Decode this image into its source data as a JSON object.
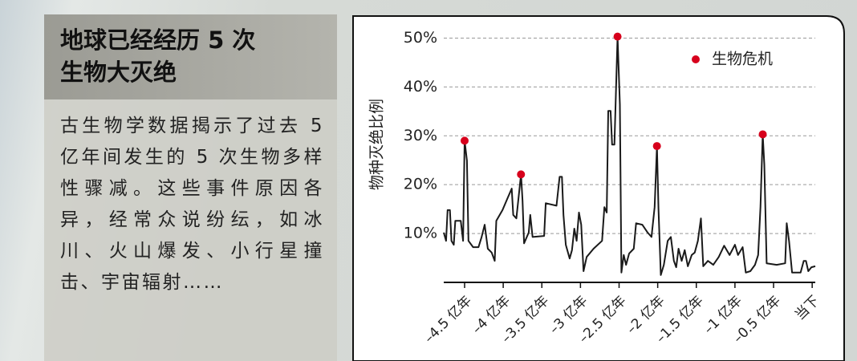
{
  "panel": {
    "title": [
      "地球已经经历 5 次",
      "生物大灭绝"
    ],
    "body": "古生物学数据揭示了过去 5 亿年间发生的 5 次生物多样性骤减。这些事件原因各异，经常众说纷纭，如冰川、火山爆发、小行星撞击、宇宙辐射……"
  },
  "chart_data": {
    "type": "line",
    "y_label": "物种灭绝比例",
    "color": "#1a1a1a",
    "x": [
      -4.77,
      -4.74,
      -4.72,
      -4.69,
      -4.67,
      -4.64,
      -4.62,
      -4.55,
      -4.52,
      -4.5,
      -4.47,
      -4.45,
      -4.39,
      -4.32,
      -4.28,
      -4.24,
      -4.2,
      -4.15,
      -4.11,
      -4.09,
      -4.01,
      -3.95,
      -3.89,
      -3.87,
      -3.83,
      -3.77,
      -3.75,
      -3.73,
      -3.67,
      -3.65,
      -3.62,
      -3.47,
      -3.45,
      -3.31,
      -3.27,
      -3.24,
      -3.22,
      -3.19,
      -3.14,
      -3.11,
      -3.08,
      -3.05,
      -3.02,
      -2.99,
      -2.96,
      -2.92,
      -2.83,
      -2.72,
      -2.69,
      -2.66,
      -2.64,
      -2.61,
      -2.59,
      -2.56,
      -2.52,
      -2.49,
      -2.47,
      -2.44,
      -2.41,
      -2.37,
      -2.31,
      -2.28,
      -2.2,
      -2.13,
      -2.08,
      -2.04,
      -2.01,
      -1.99,
      -1.96,
      -1.92,
      -1.87,
      -1.83,
      -1.79,
      -1.76,
      -1.73,
      -1.69,
      -1.65,
      -1.61,
      -1.56,
      -1.52,
      -1.48,
      -1.44,
      -1.41,
      -1.35,
      -1.28,
      -1.21,
      -1.14,
      -1.07,
      -1.0,
      -0.96,
      -0.9,
      -0.86,
      -0.8,
      -0.74,
      -0.7,
      -0.67,
      -0.64,
      -0.62,
      -0.59,
      -0.46,
      -0.35,
      -0.33,
      -0.3,
      -0.26,
      -0.15,
      -0.11,
      -0.08,
      -0.05,
      -0.01,
      0.04
    ],
    "values": [
      10.2,
      8.5,
      14.8,
      14.8,
      8.5,
      7.7,
      12.6,
      12.6,
      8.5,
      29.0,
      24.9,
      8.5,
      7.2,
      7.2,
      9.3,
      11.8,
      6.9,
      6.1,
      4.4,
      12.6,
      14.8,
      17.0,
      19.2,
      13.8,
      13.1,
      22.1,
      16.7,
      8.0,
      10.2,
      13.8,
      9.3,
      9.5,
      16.2,
      15.7,
      21.6,
      21.6,
      13.8,
      7.7,
      4.9,
      6.6,
      11.0,
      8.5,
      14.3,
      11.8,
      2.3,
      5.2,
      6.9,
      8.5,
      15.4,
      14.3,
      35.1,
      35.1,
      28.2,
      28.2,
      50.3,
      36.4,
      2.0,
      5.6,
      3.6,
      5.9,
      6.9,
      12.1,
      11.8,
      10.2,
      9.3,
      15.4,
      27.9,
      15.1,
      1.5,
      3.6,
      8.5,
      9.3,
      4.4,
      3.1,
      6.9,
      4.4,
      6.6,
      3.3,
      5.6,
      6.1,
      8.5,
      13.1,
      3.3,
      4.4,
      3.6,
      5.2,
      7.5,
      5.6,
      7.7,
      5.6,
      7.2,
      2.0,
      2.3,
      3.6,
      5.6,
      15.4,
      30.3,
      24.1,
      3.9,
      3.6,
      3.9,
      12.1,
      8.5,
      2.0,
      2.0,
      4.4,
      4.4,
      2.3,
      3.1,
      3.3
    ],
    "crisis": {
      "name": "生物危机",
      "color": "#d7001c",
      "x": [
        -4.5,
        -3.77,
        -2.52,
        -2.01,
        -0.64
      ],
      "values": [
        29.0,
        22.1,
        50.3,
        27.9,
        30.3
      ]
    },
    "xlim": [
      -4.77,
      0.04
    ],
    "ylim": [
      0,
      55
    ],
    "xticks": [
      {
        "value": -4.5,
        "label": "–4.5 亿年"
      },
      {
        "value": -4,
        "label": "–4 亿年"
      },
      {
        "value": -3.5,
        "label": "–3.5 亿年"
      },
      {
        "value": -3,
        "label": "–3 亿年"
      },
      {
        "value": -2.5,
        "label": "–2.5 亿年"
      },
      {
        "value": -2,
        "label": "–2 亿年"
      },
      {
        "value": -1.5,
        "label": "–1.5 亿年"
      },
      {
        "value": -1,
        "label": "–1 亿年"
      },
      {
        "value": -0.5,
        "label": "–0.5 亿年"
      },
      {
        "value": 0,
        "label": "当下"
      }
    ],
    "yticks": [
      {
        "value": 10,
        "label": "10%"
      },
      {
        "value": 20,
        "label": "20%"
      },
      {
        "value": 30,
        "label": "30%"
      },
      {
        "value": 40,
        "label": "40%"
      },
      {
        "value": 50,
        "label": "50%"
      }
    ],
    "grid": true,
    "legend": "top-right"
  }
}
